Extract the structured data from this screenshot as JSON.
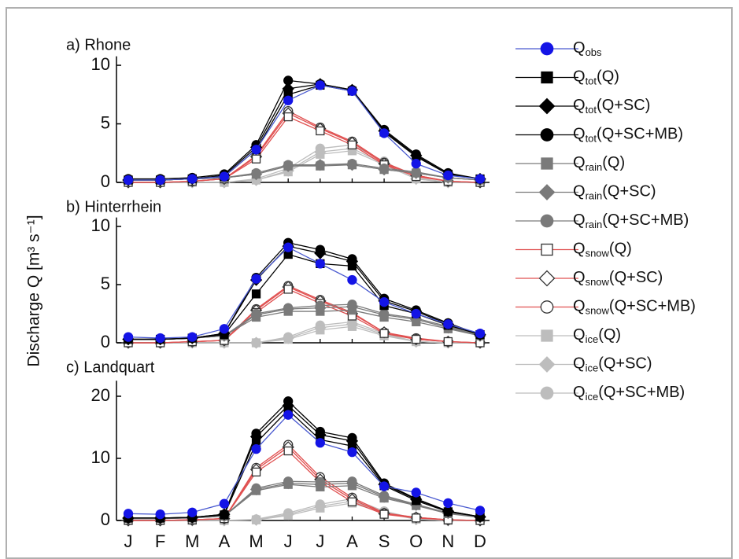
{
  "chart_data": {
    "type": "line",
    "ylabel": "Discharge Q [m³ s⁻¹]",
    "categories": [
      "J",
      "F",
      "M",
      "A",
      "M",
      "J",
      "J",
      "A",
      "S",
      "O",
      "N",
      "D"
    ],
    "panels": [
      {
        "title": "a) Rhone",
        "ylim": [
          0,
          10.5
        ],
        "yticks": [
          0,
          5,
          10
        ]
      },
      {
        "title": "b) Hinterrhein",
        "ylim": [
          0,
          10.5
        ],
        "yticks": [
          0,
          5,
          10
        ]
      },
      {
        "title": "c) Landquart",
        "ylim": [
          0,
          22
        ],
        "yticks": [
          0,
          10,
          20
        ]
      }
    ],
    "series": [
      {
        "name": "Qobs",
        "color": "#4a5ad0",
        "marker": "circle",
        "marker_color": "#1414e6",
        "hollow": false,
        "values": [
          [
            0.2,
            0.2,
            0.3,
            0.5,
            2.8,
            7.0,
            8.3,
            7.8,
            4.2,
            1.6,
            0.6,
            0.3
          ],
          [
            0.5,
            0.4,
            0.5,
            1.2,
            5.5,
            8.2,
            6.8,
            5.4,
            3.5,
            2.5,
            1.6,
            0.8
          ],
          [
            1.1,
            1.0,
            1.3,
            2.7,
            11.5,
            17.0,
            12.5,
            11.0,
            5.5,
            4.5,
            2.8,
            1.6
          ]
        ]
      },
      {
        "name": "Qtot(Q)",
        "color": "#000000",
        "marker": "square",
        "marker_color": "#000000",
        "hollow": false,
        "values": [
          [
            0.2,
            0.2,
            0.3,
            0.5,
            2.8,
            7.5,
            8.3,
            7.8,
            4.3,
            2.2,
            0.7,
            0.3
          ],
          [
            0.3,
            0.3,
            0.4,
            0.7,
            4.2,
            7.6,
            6.8,
            6.6,
            3.2,
            2.5,
            1.5,
            0.7
          ],
          [
            0.4,
            0.4,
            0.5,
            0.9,
            12.5,
            17.8,
            13.0,
            12.0,
            5.6,
            3.2,
            1.4,
            0.6
          ]
        ]
      },
      {
        "name": "Qtot(Q+SC)",
        "color": "#000000",
        "marker": "diamond",
        "marker_color": "#000000",
        "hollow": false,
        "values": [
          [
            0.2,
            0.2,
            0.3,
            0.6,
            3.0,
            8.0,
            8.4,
            7.9,
            4.4,
            2.3,
            0.7,
            0.3
          ],
          [
            0.3,
            0.3,
            0.4,
            0.8,
            5.4,
            8.3,
            7.7,
            7.0,
            3.6,
            2.7,
            1.6,
            0.7
          ],
          [
            0.4,
            0.4,
            0.5,
            1.0,
            13.5,
            18.5,
            13.8,
            12.8,
            5.8,
            3.4,
            1.5,
            0.6
          ]
        ]
      },
      {
        "name": "Qtot(Q+SC+MB)",
        "color": "#000000",
        "marker": "circle",
        "marker_color": "#000000",
        "hollow": false,
        "values": [
          [
            0.3,
            0.3,
            0.4,
            0.7,
            3.2,
            8.7,
            8.4,
            7.9,
            4.5,
            2.4,
            0.8,
            0.3
          ],
          [
            0.3,
            0.3,
            0.4,
            0.8,
            5.6,
            8.6,
            8.0,
            7.2,
            3.8,
            2.8,
            1.7,
            0.7
          ],
          [
            0.4,
            0.4,
            0.5,
            1.0,
            14.0,
            19.2,
            14.3,
            13.3,
            6.0,
            3.5,
            1.5,
            0.6
          ]
        ]
      },
      {
        "name": "Qrain(Q)",
        "color": "#7a7a7a",
        "marker": "square",
        "marker_color": "#7a7a7a",
        "hollow": false,
        "values": [
          [
            0.2,
            0.2,
            0.3,
            0.4,
            0.7,
            1.4,
            1.4,
            1.5,
            1.1,
            0.8,
            0.4,
            0.2
          ],
          [
            0.3,
            0.3,
            0.4,
            0.6,
            2.2,
            2.7,
            2.7,
            2.8,
            2.2,
            1.8,
            1.2,
            0.6
          ],
          [
            0.3,
            0.3,
            0.4,
            0.7,
            4.8,
            5.8,
            5.4,
            5.6,
            3.6,
            2.4,
            1.1,
            0.5
          ]
        ]
      },
      {
        "name": "Qrain(Q+SC)",
        "color": "#7a7a7a",
        "marker": "diamond",
        "marker_color": "#7a7a7a",
        "hollow": false,
        "values": [
          [
            0.2,
            0.2,
            0.3,
            0.4,
            0.7,
            1.4,
            1.5,
            1.5,
            1.1,
            0.8,
            0.4,
            0.2
          ],
          [
            0.3,
            0.3,
            0.4,
            0.6,
            2.4,
            2.9,
            3.0,
            3.1,
            2.4,
            2.0,
            1.3,
            0.6
          ],
          [
            0.3,
            0.3,
            0.4,
            0.7,
            5.0,
            6.0,
            5.8,
            6.0,
            3.8,
            2.5,
            1.2,
            0.5
          ]
        ]
      },
      {
        "name": "Qrain(Q+SC+MB)",
        "color": "#7a7a7a",
        "marker": "circle",
        "marker_color": "#7a7a7a",
        "hollow": false,
        "values": [
          [
            0.2,
            0.2,
            0.3,
            0.4,
            0.8,
            1.5,
            1.5,
            1.6,
            1.2,
            0.9,
            0.4,
            0.2
          ],
          [
            0.3,
            0.3,
            0.4,
            0.6,
            2.5,
            3.0,
            3.2,
            3.3,
            2.5,
            2.1,
            1.4,
            0.6
          ],
          [
            0.3,
            0.3,
            0.4,
            0.7,
            5.2,
            6.3,
            6.2,
            6.3,
            4.0,
            2.6,
            1.2,
            0.5
          ]
        ]
      },
      {
        "name": "Qsnow(Q)",
        "color": "#e05050",
        "marker": "square",
        "marker_color": "#333333",
        "hollow": true,
        "values": [
          [
            0,
            0,
            0.1,
            0.3,
            2.0,
            5.6,
            4.4,
            3.2,
            1.5,
            0.5,
            0.1,
            0
          ],
          [
            0,
            0,
            0.1,
            0.2,
            2.6,
            4.6,
            3.4,
            2.3,
            0.8,
            0.3,
            0.1,
            0
          ],
          [
            0,
            0,
            0.1,
            0.3,
            7.8,
            11.2,
            6.2,
            3.0,
            1.0,
            0.4,
            0.1,
            0
          ]
        ]
      },
      {
        "name": "Qsnow(Q+SC)",
        "color": "#e05050",
        "marker": "diamond",
        "marker_color": "#333333",
        "hollow": true,
        "values": [
          [
            0,
            0,
            0.1,
            0.3,
            2.2,
            5.9,
            4.6,
            3.4,
            1.6,
            0.6,
            0.1,
            0
          ],
          [
            0,
            0,
            0.1,
            0.2,
            2.8,
            4.8,
            3.6,
            2.5,
            0.9,
            0.3,
            0.1,
            0
          ],
          [
            0,
            0,
            0.1,
            0.3,
            8.2,
            11.8,
            6.6,
            3.4,
            1.1,
            0.5,
            0.1,
            0
          ]
        ]
      },
      {
        "name": "Qsnow(Q+SC+MB)",
        "color": "#e05050",
        "marker": "circle",
        "marker_color": "#333333",
        "hollow": true,
        "values": [
          [
            0,
            0,
            0.1,
            0.3,
            2.3,
            6.1,
            4.7,
            3.5,
            1.7,
            0.6,
            0.1,
            0
          ],
          [
            0,
            0,
            0.1,
            0.2,
            2.9,
            4.9,
            3.7,
            2.6,
            0.9,
            0.4,
            0.1,
            0
          ],
          [
            0,
            0,
            0.1,
            0.3,
            8.5,
            12.2,
            7.0,
            3.7,
            1.2,
            0.5,
            0.1,
            0
          ]
        ]
      },
      {
        "name": "Qice(Q)",
        "color": "#bdbdbd",
        "marker": "square",
        "marker_color": "#bdbdbd",
        "hollow": false,
        "values": [
          [
            0,
            0,
            0,
            0,
            0.2,
            0.9,
            2.4,
            2.7,
            1.5,
            0.3,
            0,
            0
          ],
          [
            0,
            0,
            0,
            0,
            0,
            0.3,
            1.1,
            1.4,
            0.6,
            0.1,
            0,
            0
          ],
          [
            0,
            0,
            0,
            0,
            0.1,
            0.8,
            2.0,
            2.8,
            1.2,
            0.2,
            0,
            0
          ]
        ]
      },
      {
        "name": "Qice(Q+SC)",
        "color": "#bdbdbd",
        "marker": "diamond",
        "marker_color": "#bdbdbd",
        "hollow": false,
        "values": [
          [
            0,
            0,
            0,
            0,
            0.2,
            1.0,
            2.6,
            2.9,
            1.6,
            0.3,
            0,
            0
          ],
          [
            0,
            0,
            0,
            0,
            0,
            0.4,
            1.3,
            1.6,
            0.7,
            0.1,
            0,
            0
          ],
          [
            0,
            0,
            0,
            0,
            0.1,
            1.0,
            2.3,
            3.1,
            1.3,
            0.2,
            0,
            0
          ]
        ]
      },
      {
        "name": "Qice(Q+SC+MB)",
        "color": "#bdbdbd",
        "marker": "circle",
        "marker_color": "#bdbdbd",
        "hollow": false,
        "values": [
          [
            0,
            0,
            0,
            0,
            0.3,
            1.2,
            2.9,
            3.2,
            1.8,
            0.4,
            0,
            0
          ],
          [
            0,
            0,
            0,
            0,
            0,
            0.5,
            1.5,
            1.8,
            0.8,
            0.1,
            0,
            0
          ],
          [
            0,
            0,
            0,
            0,
            0.2,
            1.2,
            2.6,
            3.5,
            1.5,
            0.3,
            0,
            0
          ]
        ]
      }
    ]
  }
}
